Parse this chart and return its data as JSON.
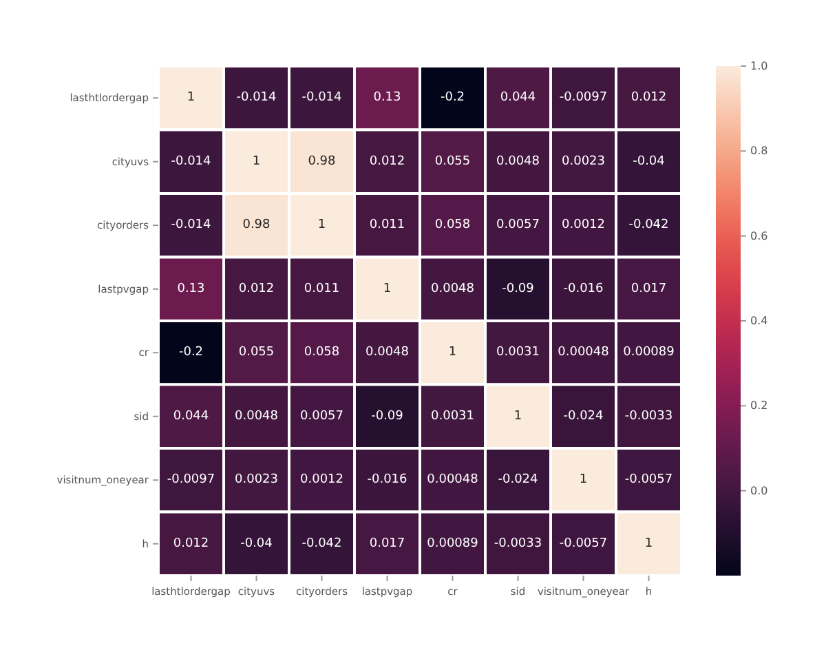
{
  "chart_data": {
    "type": "heatmap",
    "categories": [
      "lasthtlordergap",
      "cityuvs",
      "cityorders",
      "lastpvgap",
      "cr",
      "sid",
      "visitnum_oneyear",
      "h"
    ],
    "y_categories": [
      "lasthtlordergap",
      "cityuvs",
      "cityorders",
      "lastpvgap",
      "cr",
      "sid",
      "visitnum_oneyear",
      "h"
    ],
    "cells": [
      [
        1,
        -0.014,
        -0.014,
        0.13,
        -0.2,
        0.044,
        -0.0097,
        0.012
      ],
      [
        -0.014,
        1,
        0.98,
        0.012,
        0.055,
        0.0048,
        0.0023,
        -0.04
      ],
      [
        -0.014,
        0.98,
        1,
        0.011,
        0.058,
        0.0057,
        0.0012,
        -0.042
      ],
      [
        0.13,
        0.012,
        0.011,
        1,
        0.0048,
        -0.09,
        -0.016,
        0.017
      ],
      [
        -0.2,
        0.055,
        0.058,
        0.0048,
        1,
        0.0031,
        0.00048,
        0.00089
      ],
      [
        0.044,
        0.0048,
        0.0057,
        -0.09,
        0.0031,
        1,
        -0.024,
        -0.0033
      ],
      [
        -0.0097,
        0.0023,
        0.0012,
        -0.016,
        0.00048,
        -0.024,
        1,
        -0.0057
      ],
      [
        0.012,
        -0.04,
        -0.042,
        0.017,
        0.00089,
        -0.0033,
        -0.0057,
        1
      ]
    ],
    "clim": [
      -0.2,
      1.0
    ],
    "cticks": [
      {
        "value": 0,
        "label": "0.0"
      },
      {
        "value": 0.2,
        "label": "0.2"
      },
      {
        "value": 0.4,
        "label": "0.4"
      },
      {
        "value": 0.6,
        "label": "0.6"
      },
      {
        "value": 0.8,
        "label": "0.8"
      },
      {
        "value": 1,
        "label": "1.0"
      }
    ],
    "data_labels": true
  }
}
